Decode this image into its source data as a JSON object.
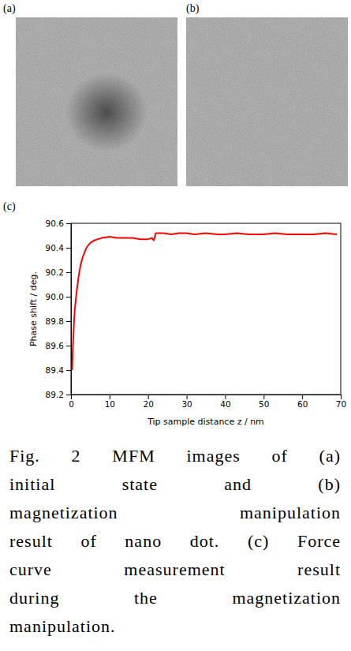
{
  "figure": {
    "panels": [
      {
        "label": "(a)"
      },
      {
        "label": "(b)"
      },
      {
        "label": "(c)"
      }
    ]
  },
  "chart_data": {
    "type": "line",
    "x_label": "Tip sample distance z / nm",
    "y_label": "Phase shift / deg.",
    "x": [
      0.3,
      0.5,
      0.8,
      1,
      1.5,
      2,
      2.5,
      3,
      4,
      5,
      6,
      7,
      8,
      10,
      12,
      14,
      16,
      18,
      20,
      21,
      21.5,
      22,
      24,
      26,
      28,
      30,
      32,
      35,
      38,
      40,
      43,
      46,
      50,
      53,
      56,
      60,
      63,
      66,
      69
    ],
    "values": [
      89.4,
      89.6,
      89.8,
      89.9,
      90.05,
      90.17,
      90.26,
      90.32,
      90.4,
      90.44,
      90.46,
      90.47,
      90.48,
      90.49,
      90.48,
      90.48,
      90.48,
      90.47,
      90.47,
      90.48,
      90.46,
      90.52,
      90.52,
      90.51,
      90.52,
      90.52,
      90.51,
      90.52,
      90.51,
      90.51,
      90.52,
      90.51,
      90.51,
      90.52,
      90.51,
      90.51,
      90.51,
      90.52,
      90.51
    ],
    "color": "#ff0000",
    "xlim": [
      0,
      70
    ],
    "ylim": [
      89.2,
      90.6
    ],
    "xticks": [
      0,
      10,
      20,
      30,
      40,
      50,
      60,
      70
    ],
    "yticks": [
      89.2,
      89.4,
      89.6,
      89.8,
      {
        "value": 90,
        "label": "90.0"
      },
      90.2,
      90.4,
      90.6
    ],
    "grid": false
  },
  "caption": {
    "lines": [
      "Fig. 2 MFM images of (a)",
      "initial state and (b)",
      "magnetization manipulation",
      "result of nano dot. (c) Force",
      "curve measurement result",
      "during the magnetization",
      "manipulation."
    ]
  }
}
